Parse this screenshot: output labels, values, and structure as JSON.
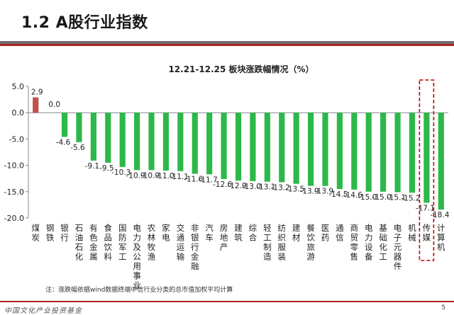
{
  "page": {
    "title": "1.2 A股行业指数",
    "footer_brand": "中国文化产业投资基金",
    "page_number": "5",
    "accent_color": "#b02424"
  },
  "chart_data": {
    "type": "bar",
    "title": "12.21-12.25 板块涨跌幅情况（%）",
    "categories": [
      "煤炭",
      "钢铁",
      "银行",
      "石油石化",
      "有色金属",
      "食品饮料",
      "国防军工",
      "电力及公用事业",
      "农林牧渔",
      "家电",
      "交通运输",
      "非银行金融",
      "汽车",
      "房地产",
      "建筑",
      "综合",
      "轻工制造",
      "纺织服装",
      "建材",
      "餐饮旅游",
      "医药",
      "通信",
      "商贸零售",
      "电力设备",
      "基础化工",
      "电子元器件",
      "机械",
      "传媒",
      "计算机"
    ],
    "values": [
      2.9,
      0.0,
      -4.6,
      -5.6,
      -9.1,
      -9.5,
      -10.3,
      -10.9,
      -10.9,
      -11.0,
      -11.1,
      -11.6,
      -11.7,
      -12.6,
      -12.9,
      -13.0,
      -13.1,
      -13.2,
      -13.5,
      -13.9,
      -13.9,
      -14.5,
      -14.6,
      -15.0,
      -15.0,
      -15.1,
      -15.2,
      -17.1,
      -18.4
    ],
    "data_labels": [
      "2.9",
      "0.0",
      "-4.6",
      "-5.6",
      "-9.1",
      "-9.5",
      "-10.3",
      "-10.9",
      "-10.9",
      "-11.0",
      "-11.1",
      "-11.6",
      "-11.7",
      "-12.6",
      "-12.9",
      "-13.0",
      "-13.1",
      "-13.2",
      "-13.5",
      "-13.9",
      "-13.9",
      "-14.5",
      "-14.6",
      "-15.0",
      "-15.0",
      "-15.1",
      "-15.2",
      "-17.1",
      "-18.4"
    ],
    "ylim": [
      -20,
      5
    ],
    "yticks": [
      5.0,
      0.0,
      -5.0,
      -10.0,
      -15.0,
      -20.0
    ],
    "ytick_labels": [
      "5.0",
      "0.0",
      "-5.0",
      "-10.0",
      "-15.0",
      "-20.0"
    ],
    "grid": false,
    "colors": {
      "positive": "#c0504d",
      "negative": "#2db84a",
      "highlight_box": "#c00000"
    },
    "highlighted_category": "传媒",
    "note": "注：涨跌幅依据wind数据终端中信行业分类的总市值加权平均计算"
  }
}
